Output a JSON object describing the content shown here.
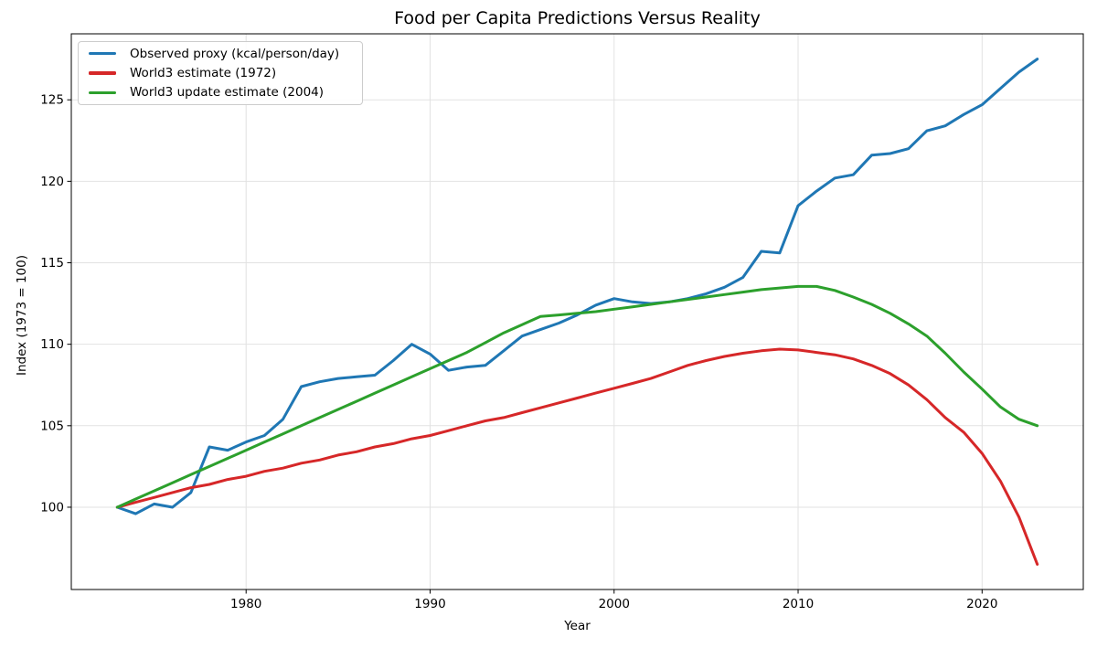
{
  "chart_data": {
    "type": "line",
    "title": "Food per Capita Predictions Versus Reality",
    "xlabel": "Year",
    "ylabel": "Index (1973 = 100)",
    "xlim": [
      1970.5,
      2025.5
    ],
    "ylim": [
      94.95,
      129.05
    ],
    "xticks": [
      1980,
      1990,
      2000,
      2010,
      2020
    ],
    "yticks": [
      100,
      105,
      110,
      115,
      120,
      125
    ],
    "grid": true,
    "grid_color": "#e2e2e2",
    "spine_color": "#000000",
    "background": "#ffffff",
    "legend_position": "upper left",
    "x": [
      1973,
      1974,
      1975,
      1976,
      1977,
      1978,
      1979,
      1980,
      1981,
      1982,
      1983,
      1984,
      1985,
      1986,
      1987,
      1988,
      1989,
      1990,
      1991,
      1992,
      1993,
      1994,
      1995,
      1996,
      1997,
      1998,
      1999,
      2000,
      2001,
      2002,
      2003,
      2004,
      2005,
      2006,
      2007,
      2008,
      2009,
      2010,
      2011,
      2012,
      2013,
      2014,
      2015,
      2016,
      2017,
      2018,
      2019,
      2020,
      2021,
      2022,
      2023
    ],
    "series": [
      {
        "name": "Observed proxy (kcal/person/day)",
        "color": "#1f77b4",
        "values": [
          100.0,
          99.6,
          100.2,
          100.0,
          100.9,
          103.7,
          103.5,
          104.0,
          104.4,
          105.4,
          107.4,
          107.7,
          107.9,
          108.0,
          108.1,
          109.0,
          110.0,
          109.4,
          108.4,
          108.6,
          108.7,
          109.6,
          110.5,
          110.9,
          111.3,
          111.8,
          112.4,
          112.8,
          112.6,
          112.5,
          112.6,
          112.8,
          113.1,
          113.5,
          114.1,
          115.7,
          115.6,
          118.5,
          119.4,
          120.2,
          120.4,
          121.6,
          121.7,
          122.0,
          123.1,
          123.4,
          124.1,
          124.7,
          125.7,
          126.7,
          127.5
        ]
      },
      {
        "name": "World3 estimate (1972)",
        "color": "#d62728",
        "values": [
          100.0,
          100.3,
          100.6,
          100.9,
          101.2,
          101.4,
          101.7,
          101.9,
          102.2,
          102.4,
          102.7,
          102.9,
          103.2,
          103.4,
          103.7,
          103.9,
          104.2,
          104.4,
          104.7,
          105.0,
          105.3,
          105.5,
          105.8,
          106.1,
          106.4,
          106.7,
          107.0,
          107.3,
          107.6,
          107.9,
          108.3,
          108.7,
          109.0,
          109.25,
          109.45,
          109.6,
          109.7,
          109.65,
          109.5,
          109.35,
          109.1,
          108.7,
          108.2,
          107.5,
          106.6,
          105.5,
          104.6,
          103.3,
          101.6,
          99.4,
          96.5
        ]
      },
      {
        "name": "World3 update estimate (2004)",
        "color": "#2ca02c",
        "values": [
          100.0,
          100.5,
          101.0,
          101.5,
          102.0,
          102.5,
          103.0,
          103.5,
          104.0,
          104.5,
          105.0,
          105.5,
          106.0,
          106.5,
          107.0,
          107.5,
          108.0,
          108.5,
          109.0,
          109.5,
          110.1,
          110.7,
          111.2,
          111.7,
          111.8,
          111.9,
          112.0,
          112.15,
          112.3,
          112.45,
          112.6,
          112.75,
          112.9,
          113.05,
          113.2,
          113.35,
          113.45,
          113.55,
          113.55,
          113.3,
          112.9,
          112.45,
          111.9,
          111.25,
          110.5,
          109.45,
          108.3,
          107.25,
          106.15,
          105.4,
          105.0
        ]
      }
    ]
  }
}
